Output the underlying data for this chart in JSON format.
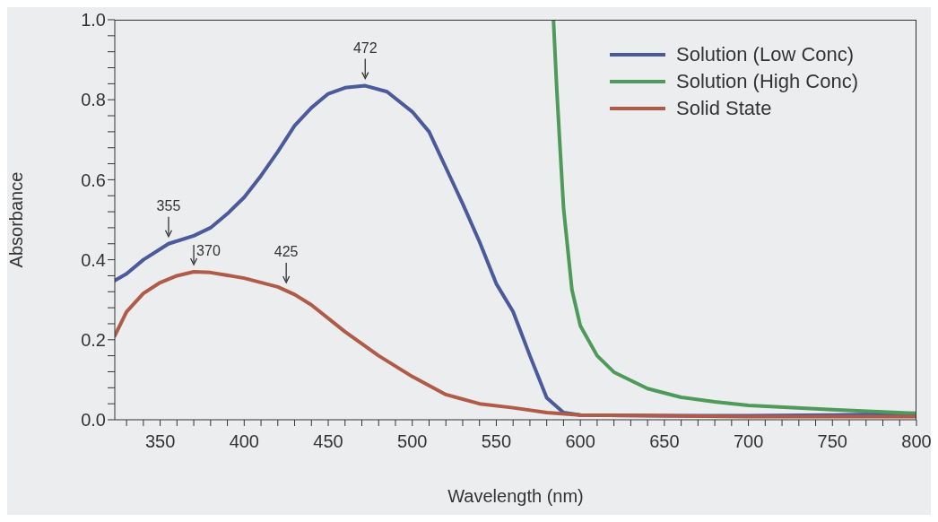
{
  "chart_data": {
    "type": "line",
    "xlabel": "Wavelength (nm)",
    "ylabel": "Absorbance",
    "xlim": [
      323,
      800
    ],
    "xticks": [
      {
        "value": 330,
        "label": null
      },
      {
        "value": 340,
        "label": null
      },
      350,
      {
        "value": 360,
        "label": null
      },
      {
        "value": 370,
        "label": null
      },
      {
        "value": 380,
        "label": null
      },
      {
        "value": 390,
        "label": null
      },
      400,
      {
        "value": 410,
        "label": null
      },
      {
        "value": 420,
        "label": null
      },
      {
        "value": 430,
        "label": null
      },
      {
        "value": 440,
        "label": null
      },
      450,
      {
        "value": 460,
        "label": null
      },
      {
        "value": 470,
        "label": null
      },
      {
        "value": 480,
        "label": null
      },
      {
        "value": 490,
        "label": null
      },
      500,
      {
        "value": 510,
        "label": null
      },
      {
        "value": 520,
        "label": null
      },
      {
        "value": 530,
        "label": null
      },
      {
        "value": 540,
        "label": null
      },
      550,
      {
        "value": 560,
        "label": null
      },
      {
        "value": 570,
        "label": null
      },
      {
        "value": 580,
        "label": null
      },
      {
        "value": 590,
        "label": null
      },
      600,
      {
        "value": 610,
        "label": null
      },
      {
        "value": 620,
        "label": null
      },
      {
        "value": 630,
        "label": null
      },
      {
        "value": 640,
        "label": null
      },
      650,
      {
        "value": 660,
        "label": null
      },
      {
        "value": 670,
        "label": null
      },
      {
        "value": 680,
        "label": null
      },
      {
        "value": 690,
        "label": null
      },
      700,
      {
        "value": 710,
        "label": null
      },
      {
        "value": 720,
        "label": null
      },
      {
        "value": 730,
        "label": null
      },
      {
        "value": 740,
        "label": null
      },
      750,
      {
        "value": 760,
        "label": null
      },
      {
        "value": 770,
        "label": null
      },
      {
        "value": 780,
        "label": null
      },
      {
        "value": 790,
        "label": null
      },
      800
    ],
    "ylim": [
      0,
      1
    ],
    "yticks": [
      {
        "value": 0,
        "label": "0.0"
      },
      {
        "value": 0.04,
        "label": null
      },
      {
        "value": 0.08,
        "label": null
      },
      {
        "value": 0.12,
        "label": null
      },
      {
        "value": 0.16,
        "label": null
      },
      0.2,
      {
        "value": 0.24,
        "label": null
      },
      {
        "value": 0.28,
        "label": null
      },
      {
        "value": 0.32,
        "label": null
      },
      {
        "value": 0.36,
        "label": null
      },
      0.4,
      {
        "value": 0.44,
        "label": null
      },
      {
        "value": 0.48,
        "label": null
      },
      {
        "value": 0.52,
        "label": null
      },
      {
        "value": 0.56,
        "label": null
      },
      0.6,
      {
        "value": 0.64,
        "label": null
      },
      {
        "value": 0.68,
        "label": null
      },
      {
        "value": 0.72,
        "label": null
      },
      {
        "value": 0.76,
        "label": null
      },
      0.8,
      {
        "value": 0.84,
        "label": null
      },
      {
        "value": 0.88,
        "label": null
      },
      {
        "value": 0.92,
        "label": null
      },
      {
        "value": 0.96,
        "label": null
      },
      {
        "value": 1,
        "label": "1.0"
      }
    ],
    "legend": "top right",
    "marker": "none",
    "line_style": "solid",
    "series": [
      {
        "name": "Solution (Low Conc)",
        "color": "#4a5a9a",
        "x": [
          323,
          330,
          340,
          355,
          370,
          380,
          390,
          400,
          410,
          420,
          430,
          440,
          450,
          460,
          472,
          485,
          500,
          510,
          520,
          530,
          540,
          550,
          560,
          570,
          580,
          590,
          600,
          650,
          700,
          750,
          800
        ],
        "values": [
          0.348,
          0.365,
          0.4,
          0.44,
          0.46,
          0.48,
          0.515,
          0.556,
          0.61,
          0.67,
          0.735,
          0.78,
          0.815,
          0.83,
          0.835,
          0.82,
          0.77,
          0.72,
          0.63,
          0.54,
          0.445,
          0.34,
          0.27,
          0.16,
          0.055,
          0.018,
          0.012,
          0.01,
          0.01,
          0.012,
          0.015
        ]
      },
      {
        "name": "Solution (High Conc)",
        "color": "#4e9a5a",
        "x": [
          584,
          586,
          588,
          590,
          595,
          600,
          610,
          620,
          640,
          660,
          680,
          700,
          750,
          800
        ],
        "values": [
          1.0,
          0.825,
          0.675,
          0.53,
          0.325,
          0.235,
          0.16,
          0.119,
          0.078,
          0.056,
          0.045,
          0.036,
          0.025,
          0.016
        ]
      },
      {
        "name": "Solid State",
        "color": "#b05a48",
        "x": [
          323,
          330,
          340,
          350,
          360,
          370,
          380,
          400,
          420,
          430,
          440,
          460,
          480,
          500,
          520,
          540,
          560,
          580,
          600,
          650,
          700,
          800
        ],
        "values": [
          0.21,
          0.27,
          0.316,
          0.343,
          0.36,
          0.37,
          0.368,
          0.354,
          0.332,
          0.313,
          0.287,
          0.22,
          0.16,
          0.108,
          0.063,
          0.04,
          0.03,
          0.018,
          0.012,
          0.01,
          0.008,
          0.008
        ]
      }
    ],
    "annotations": [
      {
        "text": "472",
        "x": 472,
        "y": 0.835
      },
      {
        "text": "355",
        "x": 355,
        "y": 0.44
      },
      {
        "text": "370",
        "x": 370,
        "y": 0.37
      },
      {
        "text": "425",
        "x": 425,
        "y": 0.325
      }
    ]
  }
}
